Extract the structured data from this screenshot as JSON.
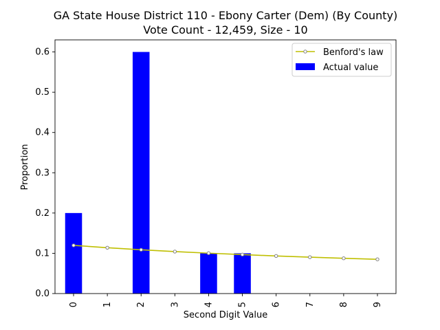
{
  "chart_data": {
    "type": "bar",
    "title": "GA State House District 110 - Ebony Carter (Dem) (By County)",
    "subtitle": "Vote Count - 12,459, Size - 10",
    "xlabel": "Second Digit Value",
    "ylabel": "Proportion",
    "categories": [
      "0",
      "1",
      "2",
      "3",
      "4",
      "5",
      "6",
      "7",
      "8",
      "9"
    ],
    "ylim": [
      0,
      0.63
    ],
    "yticks": [
      "0.0",
      "0.1",
      "0.2",
      "0.3",
      "0.4",
      "0.5",
      "0.6"
    ],
    "legend_position": "top-right",
    "series": [
      {
        "name": "Actual value",
        "kind": "bar",
        "color": "#0000ff",
        "values": [
          0.2,
          0.0,
          0.6,
          0.0,
          0.1,
          0.1,
          0.0,
          0.0,
          0.0,
          0.0
        ]
      },
      {
        "name": "Benford's law",
        "kind": "line",
        "color": "#bfbf00",
        "marker_color": "#808080",
        "values": [
          0.1197,
          0.1139,
          0.1088,
          0.1043,
          0.1003,
          0.0967,
          0.0934,
          0.0904,
          0.0876,
          0.085
        ]
      }
    ]
  }
}
